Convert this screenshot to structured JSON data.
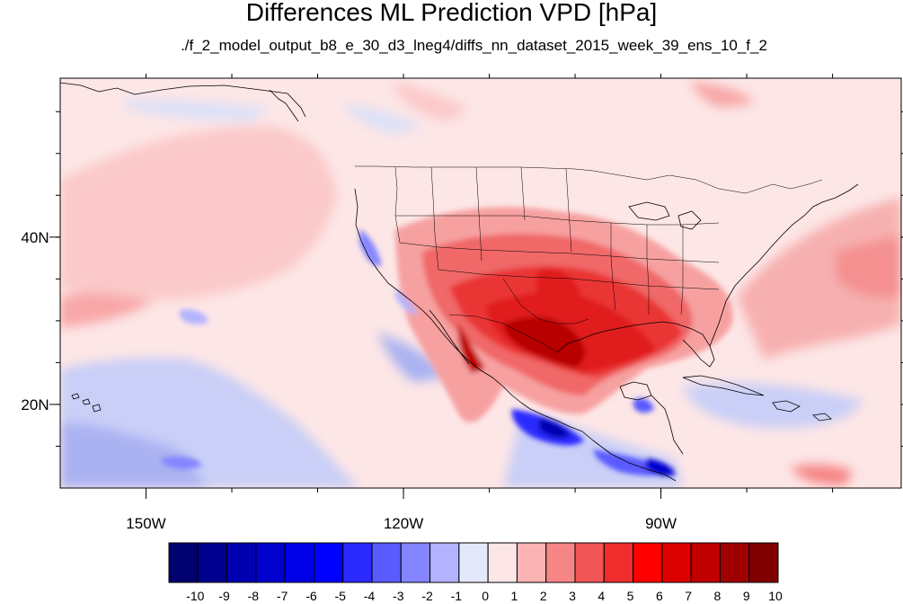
{
  "title": "Differences ML Prediction VPD [hPa]",
  "subtitle": "./f_2_model_output_b8_e_30_d3_lneg4/diffs_nn_dataset_2015_week_39_ens_10_f_2",
  "map": {
    "lon_range": [
      -160,
      -62
    ],
    "lat_range": [
      10,
      59
    ],
    "lon_ticks": [
      {
        "value": -150,
        "label": "150W"
      },
      {
        "value": -120,
        "label": "120W"
      },
      {
        "value": -90,
        "label": "90W"
      }
    ],
    "lat_ticks": [
      {
        "value": 40,
        "label": "40N"
      },
      {
        "value": 20,
        "label": "20N"
      }
    ]
  },
  "colorbar": {
    "labels": [
      "-10",
      "-9",
      "-8",
      "-7",
      "-6",
      "-5",
      "-4",
      "-3",
      "-2",
      "-1",
      "0",
      "1",
      "2",
      "3",
      "4",
      "5",
      "6",
      "7",
      "8",
      "9",
      "10"
    ],
    "colors": [
      "#00006e",
      "#00008f",
      "#0000b0",
      "#0000cf",
      "#0000e6",
      "#0000ff",
      "#2a2aff",
      "#5a5aff",
      "#8585ff",
      "#b3b3ff",
      "#e4e8fb",
      "#fde6e6",
      "#fbb3b3",
      "#f68585",
      "#f25555",
      "#f02d2d",
      "#ff0000",
      "#dd0000",
      "#c00000",
      "#a10000",
      "#800000"
    ]
  },
  "chart_data": {
    "type": "heatmap",
    "title": "Differences ML Prediction VPD [hPa]",
    "subtitle": "./f_2_model_output_b8_e_30_d3_lneg4/diffs_nn_dataset_2015_week_39_ens_10_f_2",
    "projection": "cylindrical equidistant",
    "x_ticks": [
      "150W",
      "120W",
      "90W"
    ],
    "y_ticks": [
      "40N",
      "20N"
    ],
    "colorbar_levels": [
      -10,
      -9,
      -8,
      -7,
      -6,
      -5,
      -4,
      -3,
      -2,
      -1,
      0,
      1,
      2,
      3,
      4,
      5,
      6,
      7,
      8,
      9,
      10
    ],
    "regions": [
      {
        "region": "Texas / northern Mexico / Gulf of Mexico",
        "value_range": [
          5,
          10
        ]
      },
      {
        "region": "Southern Great Plains / Southwest US",
        "value_range": [
          3,
          6
        ]
      },
      {
        "region": "Southeast US / western Atlantic",
        "value_range": [
          2,
          4
        ]
      },
      {
        "region": "NE Pacific",
        "value_range": [
          1,
          2
        ]
      },
      {
        "region": "Southern Mexico Pacific coast / Central America",
        "value_range": [
          -6,
          -3
        ]
      },
      {
        "region": "Tropical Pacific southwest",
        "value_range": [
          -3,
          -1
        ]
      },
      {
        "region": "Caribbean",
        "value_range": [
          -2,
          0
        ]
      },
      {
        "region": "California coast",
        "value_range": [
          -4,
          -1
        ]
      }
    ]
  }
}
